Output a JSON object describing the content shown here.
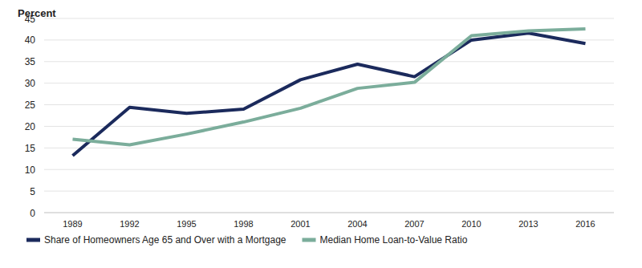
{
  "chart_data": {
    "type": "line",
    "y_label": "Percent",
    "categories": [
      "1989",
      "1992",
      "1995",
      "1998",
      "2001",
      "2004",
      "2007",
      "2010",
      "2013",
      "2016"
    ],
    "series": [
      {
        "name": "Share of Homeowners Age 65 and Over with a Mortgage",
        "color": "#1b2a5c",
        "line_style": "solid",
        "values": [
          13.2,
          24.4,
          23,
          24,
          30.8,
          34.4,
          31.5,
          40,
          41.6,
          39.2
        ]
      },
      {
        "name": "Median Home Loan-to-Value Ratio",
        "color": "#7bad9b",
        "line_style": "solid",
        "values": [
          17,
          15.7,
          18.2,
          21,
          24.2,
          28.8,
          30.2,
          41,
          42.1,
          42.6
        ]
      }
    ],
    "ylim": [
      0,
      45
    ],
    "yticks": [
      0,
      5,
      10,
      15,
      20,
      25,
      30,
      35,
      40,
      45
    ],
    "grid": true,
    "legend": "bottom"
  }
}
